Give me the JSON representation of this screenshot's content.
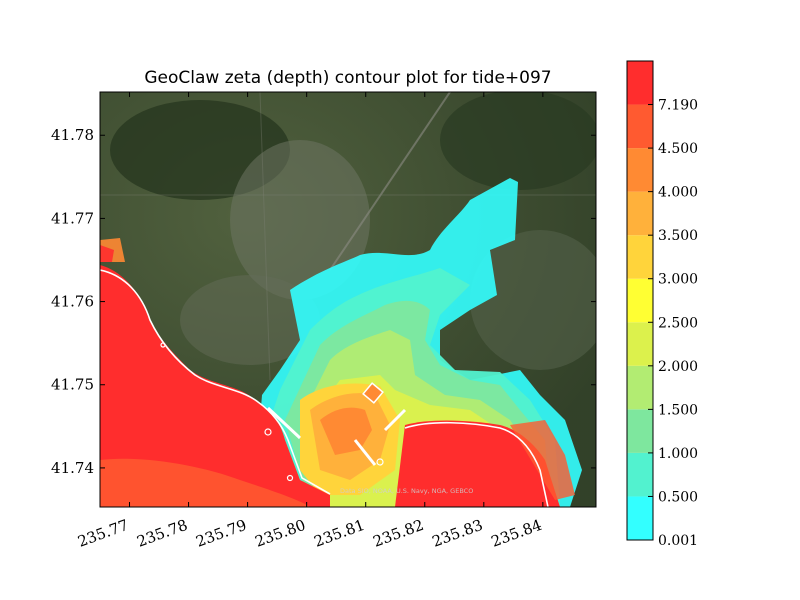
{
  "chart_data": {
    "type": "contour",
    "title": "GeoClaw zeta (depth) contour plot for tide+097",
    "xlabel": "",
    "ylabel": "",
    "xlim": [
      235.765,
      235.849
    ],
    "ylim": [
      41.7353,
      41.7852
    ],
    "xticks": [
      235.77,
      235.78,
      235.79,
      235.8,
      235.81,
      235.82,
      235.83,
      235.84
    ],
    "xtick_labels": [
      "235.77",
      "235.78",
      "235.79",
      "235.80",
      "235.81",
      "235.82",
      "235.83",
      "235.84"
    ],
    "yticks": [
      41.74,
      41.75,
      41.76,
      41.77,
      41.78
    ],
    "ytick_labels": [
      "41.74",
      "41.75",
      "41.76",
      "41.77",
      "41.78"
    ],
    "colorbar": {
      "levels": [
        0.001,
        0.5,
        1.0,
        1.5,
        2.0,
        2.5,
        3.0,
        3.5,
        4.0,
        4.5,
        7.19
      ],
      "tick_labels": [
        "0.001",
        "0.500",
        "1.000",
        "1.500",
        "2.000",
        "2.500",
        "3.000",
        "3.500",
        "4.000",
        "4.500",
        "7.190"
      ],
      "colors": [
        "#33ffff",
        "#52f2cf",
        "#7ee79e",
        "#b2ec72",
        "#dcf14c",
        "#ffff33",
        "#ffd43b",
        "#ffb13b",
        "#ff8a33",
        "#ff5a30",
        "#ff2d2d"
      ]
    },
    "background": "satellite imagery",
    "attribution": "Data SIO, NOAA, U.S. Navy, NGA, GEBCO"
  }
}
